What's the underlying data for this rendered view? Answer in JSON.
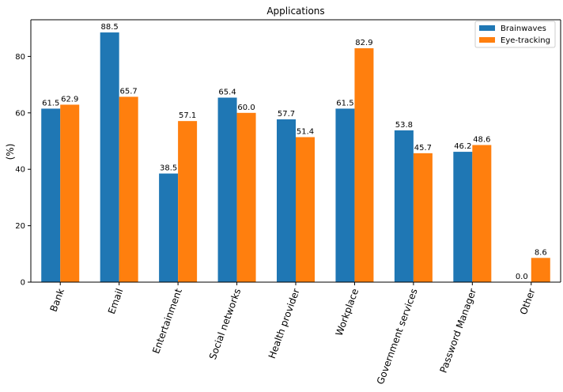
{
  "chart_data": {
    "type": "bar",
    "title": "Applications",
    "xlabel": "",
    "ylabel": "(%)",
    "ylim": [
      0,
      93
    ],
    "yticks": [
      0,
      20,
      40,
      60,
      80
    ],
    "grid": false,
    "legend_position": "top-right",
    "categories": [
      "Bank",
      "Email",
      "Entertainment",
      "Social networks",
      "Health provider",
      "Workplace",
      "Government services",
      "Password Manager",
      "Other"
    ],
    "series": [
      {
        "name": "Brainwaves",
        "color": "#1f77b4",
        "values": [
          61.5,
          88.5,
          38.5,
          65.4,
          57.7,
          61.5,
          53.8,
          46.2,
          0.0
        ],
        "labels": [
          "61.5",
          "88.5",
          "38.5",
          "65.4",
          "57.7",
          "61.5",
          "53.8",
          "46.2",
          "0.0"
        ]
      },
      {
        "name": "Eye-tracking",
        "color": "#ff7f0e",
        "values": [
          62.9,
          65.7,
          57.1,
          60.0,
          51.4,
          82.9,
          45.7,
          48.6,
          8.6
        ],
        "labels": [
          "62.9",
          "65.7",
          "57.1",
          "60.0",
          "51.4",
          "82.9",
          "45.7",
          "48.6",
          "8.6"
        ]
      }
    ]
  }
}
